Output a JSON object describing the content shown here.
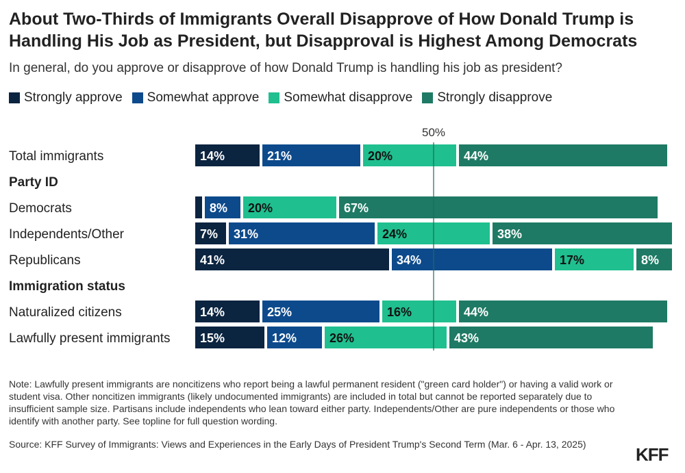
{
  "title": "About Two-Thirds of Immigrants Overall Disapprove of How Donald Trump is Handling His Job as President, but Disapproval is Highest Among Democrats",
  "subtitle": "In general, do you approve or disapprove of how Donald Trump is handling his job as president?",
  "legend": [
    {
      "label": "Strongly approve",
      "color": "#0b2440"
    },
    {
      "label": "Somewhat approve",
      "color": "#0d4a8c"
    },
    {
      "label": "Somewhat disapprove",
      "color": "#1fbf8f"
    },
    {
      "label": "Strongly disapprove",
      "color": "#1e7a64"
    }
  ],
  "chart_data": {
    "type": "bar",
    "orientation": "horizontal",
    "stacked": true,
    "reference_line": {
      "value": 50,
      "label": "50%"
    },
    "series": [
      {
        "name": "Strongly approve",
        "color": "#0b2440"
      },
      {
        "name": "Somewhat approve",
        "color": "#0d4a8c"
      },
      {
        "name": "Somewhat disapprove",
        "color": "#1fbf8f"
      },
      {
        "name": "Strongly disapprove",
        "color": "#1e7a64"
      }
    ],
    "rows": [
      {
        "kind": "bar",
        "label": "Total immigrants",
        "values": [
          14,
          21,
          20,
          44
        ],
        "labels": [
          "14%",
          "21%",
          "20%",
          "44%"
        ]
      },
      {
        "kind": "header",
        "label": "Party ID"
      },
      {
        "kind": "bar",
        "label": "Democrats",
        "values": [
          2,
          8,
          20,
          67
        ],
        "labels": [
          "",
          "8%",
          "20%",
          "67%"
        ]
      },
      {
        "kind": "bar",
        "label": "Independents/Other",
        "values": [
          7,
          31,
          24,
          38
        ],
        "labels": [
          "7%",
          "31%",
          "24%",
          "38%"
        ]
      },
      {
        "kind": "bar",
        "label": "Republicans",
        "values": [
          41,
          34,
          17,
          8
        ],
        "labels": [
          "41%",
          "34%",
          "17%",
          "8%"
        ]
      },
      {
        "kind": "header",
        "label": "Immigration status"
      },
      {
        "kind": "bar",
        "label": "Naturalized citizens",
        "values": [
          14,
          25,
          16,
          44
        ],
        "labels": [
          "14%",
          "25%",
          "16%",
          "44%"
        ]
      },
      {
        "kind": "bar",
        "label": "Lawfully present immigrants",
        "values": [
          15,
          12,
          26,
          43
        ],
        "labels": [
          "15%",
          "12%",
          "26%",
          "43%"
        ]
      }
    ]
  },
  "note": "Note: Lawfully present immigrants are noncitizens who report being a lawful permanent resident (\"green card holder\") or having a valid work or student visa. Other noncitizen immigrants (likely undocumented immigrants) are included in total but cannot be reported separately due to insufficient sample size. Partisans include independents who lean toward either party. Independents/Other are pure independents or those who identify with another party. See topline for full question wording.",
  "source": "Source: KFF Survey of Immigrants: Views and Experiences in the Early Days of President Trump's Second Term (Mar. 6 - Apr. 13, 2025)",
  "logo": "KFF"
}
